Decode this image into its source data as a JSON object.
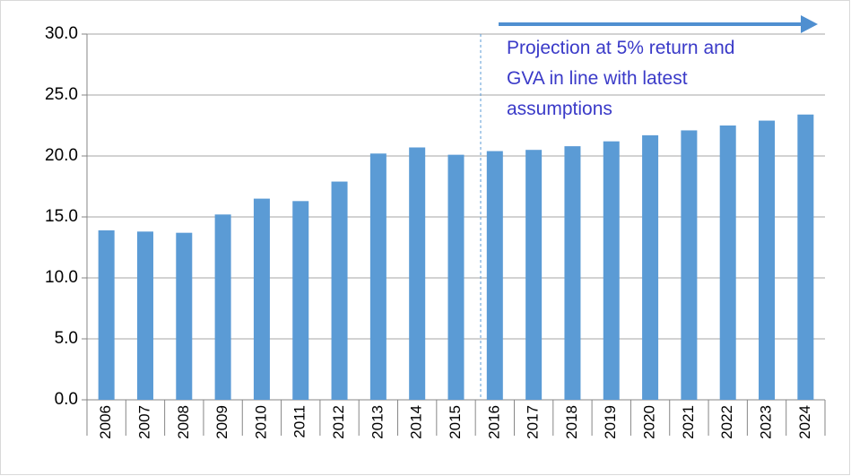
{
  "chart_data": {
    "type": "bar",
    "categories": [
      "2006",
      "2007",
      "2008",
      "2009",
      "2010",
      "2011",
      "2012",
      "2013",
      "2014",
      "2015",
      "2016",
      "2017",
      "2018",
      "2019",
      "2020",
      "2021",
      "2022",
      "2023",
      "2024"
    ],
    "values": [
      13.9,
      13.8,
      13.7,
      15.2,
      16.5,
      16.3,
      17.9,
      20.2,
      20.7,
      20.1,
      20.4,
      20.5,
      20.8,
      21.2,
      21.7,
      22.1,
      22.5,
      22.9,
      23.4
    ],
    "color": "#5b9bd5",
    "ylim": [
      0,
      30
    ],
    "yticks": [
      {
        "value": 0,
        "label": "0.0"
      },
      {
        "value": 5,
        "label": "5.0"
      },
      {
        "value": 10,
        "label": "10.0"
      },
      {
        "value": 15,
        "label": "15.0"
      },
      {
        "value": 20,
        "label": "20.0"
      },
      {
        "value": 25,
        "label": "25.0"
      },
      {
        "value": 30,
        "label": "30.0"
      }
    ],
    "grid": true,
    "annotation": [
      "Projection at 5% return and",
      "GVA in line with latest",
      "assumptions"
    ]
  }
}
